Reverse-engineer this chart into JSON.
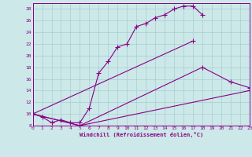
{
  "xlabel": "Windchill (Refroidissement éolien,°C)",
  "background_color": "#cce8e8",
  "line_color": "#880088",
  "xlim": [
    0,
    23
  ],
  "ylim": [
    8,
    29
  ],
  "yticks": [
    8,
    10,
    12,
    14,
    16,
    18,
    20,
    22,
    24,
    26,
    28
  ],
  "xticks": [
    0,
    1,
    2,
    3,
    4,
    5,
    6,
    7,
    8,
    9,
    10,
    11,
    12,
    13,
    14,
    15,
    16,
    17,
    18,
    19,
    20,
    21,
    22,
    23
  ],
  "line1_x": [
    0,
    1,
    2,
    3,
    4,
    5,
    6,
    7,
    8,
    9,
    10,
    11,
    12,
    13,
    14,
    15,
    16,
    17,
    18
  ],
  "line1_y": [
    10,
    9.5,
    8.5,
    9,
    8.5,
    8.5,
    11,
    17,
    19,
    21.5,
    22,
    25,
    25.5,
    26.5,
    27,
    28,
    28.5,
    28.5,
    27
  ],
  "line2_x": [
    0,
    17
  ],
  "line2_y": [
    10,
    22.5
  ],
  "line3_x": [
    0,
    5,
    23
  ],
  "line3_y": [
    10,
    8,
    14
  ],
  "line4_x": [
    0,
    5,
    18,
    21,
    23
  ],
  "line4_y": [
    10,
    8,
    18,
    15.5,
    14.5
  ]
}
